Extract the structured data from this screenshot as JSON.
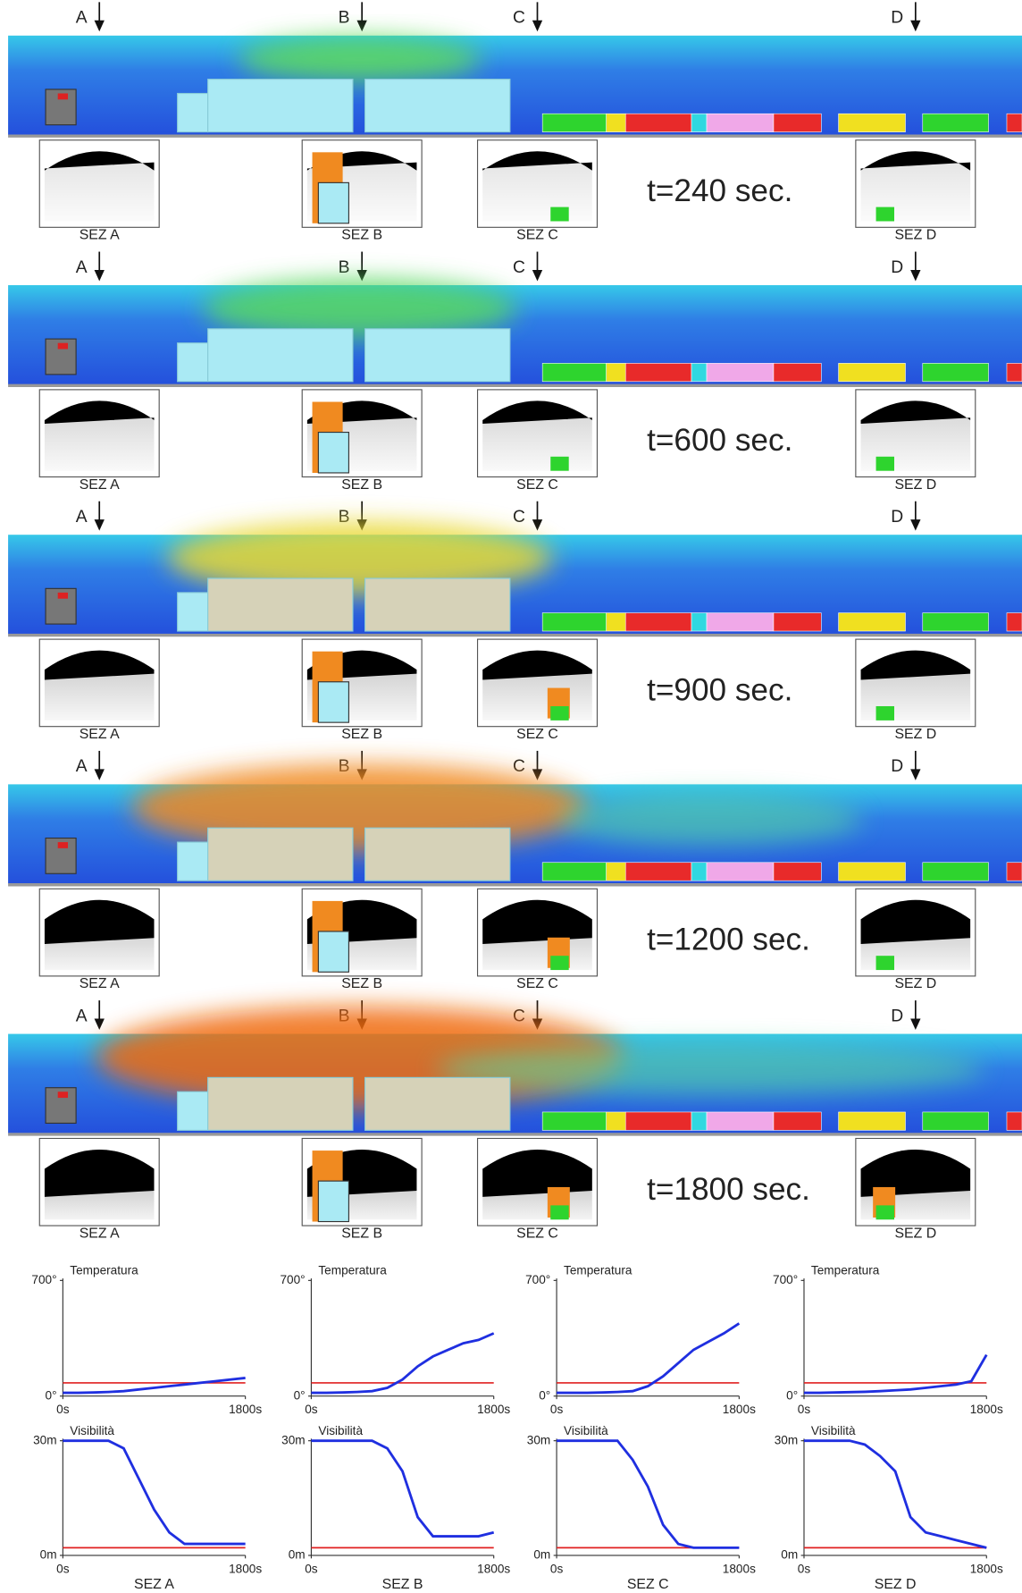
{
  "figure": {
    "sections": [
      {
        "time": "t=240 sec.",
        "markers": [
          "A",
          "B",
          "C",
          "D"
        ],
        "section_labels": [
          "SEZ A",
          "SEZ B",
          "SEZ C",
          "SEZ D"
        ]
      },
      {
        "time": "t=600 sec.",
        "markers": [
          "A",
          "B",
          "C",
          "D"
        ],
        "section_labels": [
          "SEZ A",
          "SEZ B",
          "SEZ C",
          "SEZ D"
        ]
      },
      {
        "time": "t=900 sec.",
        "markers": [
          "A",
          "B",
          "C",
          "D"
        ],
        "section_labels": [
          "SEZ A",
          "SEZ B",
          "SEZ C",
          "SEZ D"
        ]
      },
      {
        "time": "t=1200 sec.",
        "markers": [
          "A",
          "B",
          "C",
          "D"
        ],
        "section_labels": [
          "SEZ A",
          "SEZ B",
          "SEZ C",
          "SEZ D"
        ]
      },
      {
        "time": "t=1800 sec.",
        "markers": [
          "A",
          "B",
          "C",
          "D"
        ],
        "section_labels": [
          "SEZ A",
          "SEZ B",
          "SEZ C",
          "SEZ D"
        ]
      }
    ]
  },
  "chart_data": [
    {
      "type": "line",
      "title": "Temperatura",
      "x": [
        0,
        150,
        300,
        450,
        600,
        750,
        900,
        1050,
        1200,
        1350,
        1500,
        1650,
        1800
      ],
      "values": [
        20,
        20,
        22,
        25,
        30,
        40,
        50,
        60,
        70,
        80,
        90,
        100,
        110
      ],
      "color": "#1f2fe0",
      "reference_lines": [
        {
          "value": 80,
          "color": "#e02020"
        }
      ],
      "xlim": [
        0,
        1800
      ],
      "xticks": [
        {
          "value": 0,
          "label": "0s"
        },
        {
          "value": 1800,
          "label": "1800s"
        }
      ],
      "ylim": [
        0,
        700
      ],
      "yticks": [
        {
          "value": 0,
          "label": "0°"
        },
        {
          "value": 700,
          "label": "700°"
        }
      ]
    },
    {
      "type": "line",
      "title": "Temperatura",
      "x": [
        0,
        150,
        300,
        450,
        600,
        750,
        900,
        1050,
        1200,
        1350,
        1500,
        1650,
        1800
      ],
      "values": [
        20,
        20,
        22,
        25,
        30,
        50,
        100,
        180,
        240,
        280,
        320,
        340,
        380
      ],
      "color": "#1f2fe0",
      "reference_lines": [
        {
          "value": 80,
          "color": "#e02020"
        }
      ],
      "xlim": [
        0,
        1800
      ],
      "xticks": [
        {
          "value": 0,
          "label": "0s"
        },
        {
          "value": 1800,
          "label": "1800s"
        }
      ],
      "ylim": [
        0,
        700
      ],
      "yticks": [
        {
          "value": 0,
          "label": "0°"
        },
        {
          "value": 700,
          "label": "700°"
        }
      ]
    },
    {
      "type": "line",
      "title": "Temperatura",
      "x": [
        0,
        150,
        300,
        450,
        600,
        750,
        900,
        1050,
        1200,
        1350,
        1500,
        1650,
        1800
      ],
      "values": [
        20,
        20,
        20,
        22,
        25,
        30,
        60,
        120,
        200,
        280,
        330,
        380,
        440
      ],
      "color": "#1f2fe0",
      "reference_lines": [
        {
          "value": 80,
          "color": "#e02020"
        }
      ],
      "xlim": [
        0,
        1800
      ],
      "xticks": [
        {
          "value": 0,
          "label": "0s"
        },
        {
          "value": 1800,
          "label": "1800s"
        }
      ],
      "ylim": [
        0,
        700
      ],
      "yticks": [
        {
          "value": 0,
          "label": "0°"
        },
        {
          "value": 700,
          "label": "700°"
        }
      ]
    },
    {
      "type": "line",
      "title": "Temperatura",
      "x": [
        0,
        150,
        300,
        450,
        600,
        750,
        900,
        1050,
        1200,
        1350,
        1500,
        1650,
        1800
      ],
      "values": [
        20,
        20,
        22,
        24,
        26,
        30,
        35,
        40,
        50,
        60,
        70,
        90,
        250
      ],
      "color": "#1f2fe0",
      "reference_lines": [
        {
          "value": 80,
          "color": "#e02020"
        }
      ],
      "xlim": [
        0,
        1800
      ],
      "xticks": [
        {
          "value": 0,
          "label": "0s"
        },
        {
          "value": 1800,
          "label": "1800s"
        }
      ],
      "ylim": [
        0,
        700
      ],
      "yticks": [
        {
          "value": 0,
          "label": "0°"
        },
        {
          "value": 700,
          "label": "700°"
        }
      ]
    },
    {
      "type": "line",
      "title": "Visibilità",
      "xlabel": "SEZ A",
      "x": [
        0,
        150,
        300,
        450,
        600,
        750,
        900,
        1050,
        1200,
        1350,
        1500,
        1650,
        1800
      ],
      "values": [
        30,
        30,
        30,
        30,
        28,
        20,
        12,
        6,
        3,
        3,
        3,
        3,
        3
      ],
      "color": "#1f2fe0",
      "reference_lines": [
        {
          "value": 2,
          "color": "#e02020"
        }
      ],
      "xlim": [
        0,
        1800
      ],
      "xticks": [
        {
          "value": 0,
          "label": "0s"
        },
        {
          "value": 1800,
          "label": "1800s"
        }
      ],
      "ylim": [
        0,
        30
      ],
      "yticks": [
        {
          "value": 0,
          "label": "0m"
        },
        {
          "value": 30,
          "label": "30m"
        }
      ]
    },
    {
      "type": "line",
      "title": "Visibilità",
      "xlabel": "SEZ B",
      "x": [
        0,
        150,
        300,
        450,
        600,
        750,
        900,
        1050,
        1200,
        1350,
        1500,
        1650,
        1800
      ],
      "values": [
        30,
        30,
        30,
        30,
        30,
        28,
        22,
        10,
        5,
        5,
        5,
        5,
        6
      ],
      "color": "#1f2fe0",
      "reference_lines": [
        {
          "value": 2,
          "color": "#e02020"
        }
      ],
      "xlim": [
        0,
        1800
      ],
      "xticks": [
        {
          "value": 0,
          "label": "0s"
        },
        {
          "value": 1800,
          "label": "1800s"
        }
      ],
      "ylim": [
        0,
        30
      ],
      "yticks": [
        {
          "value": 0,
          "label": "0m"
        },
        {
          "value": 30,
          "label": "30m"
        }
      ]
    },
    {
      "type": "line",
      "title": "Visibilità",
      "xlabel": "SEZ C",
      "x": [
        0,
        150,
        300,
        450,
        600,
        750,
        900,
        1050,
        1200,
        1350,
        1500,
        1650,
        1800
      ],
      "values": [
        30,
        30,
        30,
        30,
        30,
        25,
        18,
        8,
        3,
        2,
        2,
        2,
        2
      ],
      "color": "#1f2fe0",
      "reference_lines": [
        {
          "value": 2,
          "color": "#e02020"
        }
      ],
      "xlim": [
        0,
        1800
      ],
      "xticks": [
        {
          "value": 0,
          "label": "0s"
        },
        {
          "value": 1800,
          "label": "1800s"
        }
      ],
      "ylim": [
        0,
        30
      ],
      "yticks": [
        {
          "value": 0,
          "label": "0m"
        },
        {
          "value": 30,
          "label": "30m"
        }
      ]
    },
    {
      "type": "line",
      "title": "Visibilità",
      "xlabel": "SEZ D",
      "x": [
        0,
        150,
        300,
        450,
        600,
        750,
        900,
        1050,
        1200,
        1350,
        1500,
        1650,
        1800
      ],
      "values": [
        30,
        30,
        30,
        30,
        29,
        26,
        22,
        10,
        6,
        5,
        4,
        3,
        2
      ],
      "color": "#1f2fe0",
      "reference_lines": [
        {
          "value": 2,
          "color": "#e02020"
        }
      ],
      "xlim": [
        0,
        1800
      ],
      "xticks": [
        {
          "value": 0,
          "label": "0s"
        },
        {
          "value": 1800,
          "label": "1800s"
        }
      ],
      "ylim": [
        0,
        30
      ],
      "yticks": [
        {
          "value": 0,
          "label": "0m"
        },
        {
          "value": 30,
          "label": "30m"
        }
      ]
    }
  ]
}
